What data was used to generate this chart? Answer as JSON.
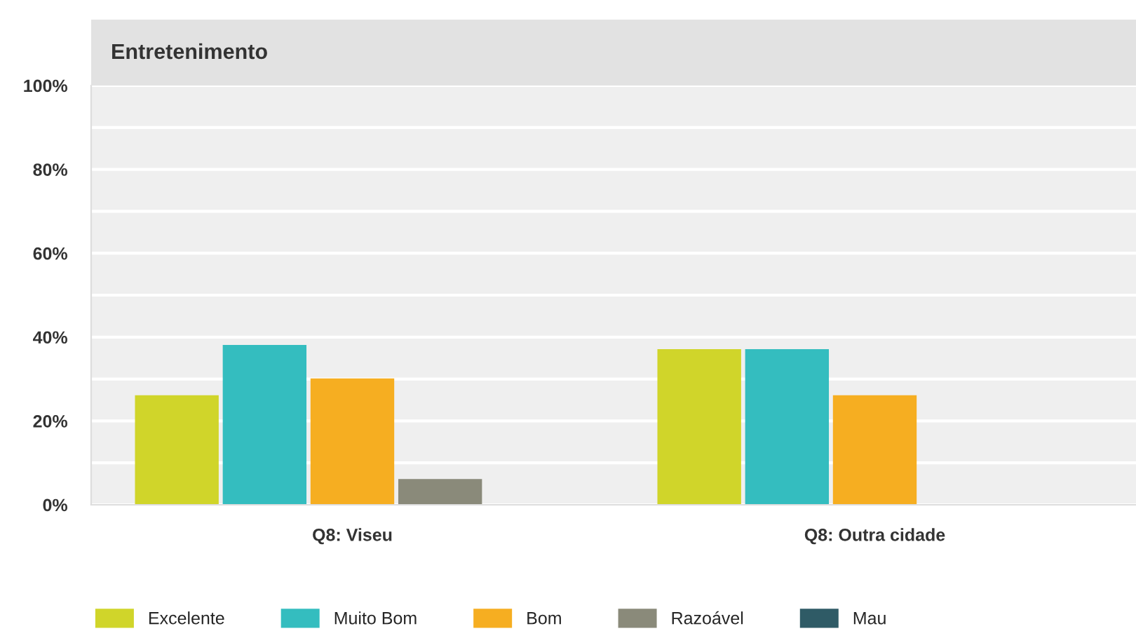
{
  "chart_data": {
    "type": "bar",
    "title": "Entretenimento",
    "categories": [
      "Q8: Viseu",
      "Q8: Outra cidade"
    ],
    "series": [
      {
        "name": "Excelente",
        "color": "#d0d52a",
        "values": [
          26,
          37
        ]
      },
      {
        "name": "Muito Bom",
        "color": "#34bdbf",
        "values": [
          38,
          37
        ]
      },
      {
        "name": "Bom",
        "color": "#f6ae21",
        "values": [
          30,
          26
        ]
      },
      {
        "name": "Razoável",
        "color": "#8a8a7a",
        "values": [
          6,
          0
        ]
      },
      {
        "name": "Mau",
        "color": "#2f5b66",
        "values": [
          0,
          0
        ]
      }
    ],
    "ylim": [
      0,
      100
    ],
    "yticks": [
      {
        "value": 0,
        "label": "0%"
      },
      {
        "value": 10,
        "label": null
      },
      {
        "value": 20,
        "label": "20%"
      },
      {
        "value": 30,
        "label": null
      },
      {
        "value": 40,
        "label": "40%"
      },
      {
        "value": 50,
        "label": null
      },
      {
        "value": 60,
        "label": "60%"
      },
      {
        "value": 70,
        "label": null
      },
      {
        "value": 80,
        "label": "80%"
      },
      {
        "value": 90,
        "label": null
      },
      {
        "value": 100,
        "label": "100%"
      }
    ],
    "grid": "y",
    "legend": "bottom"
  }
}
